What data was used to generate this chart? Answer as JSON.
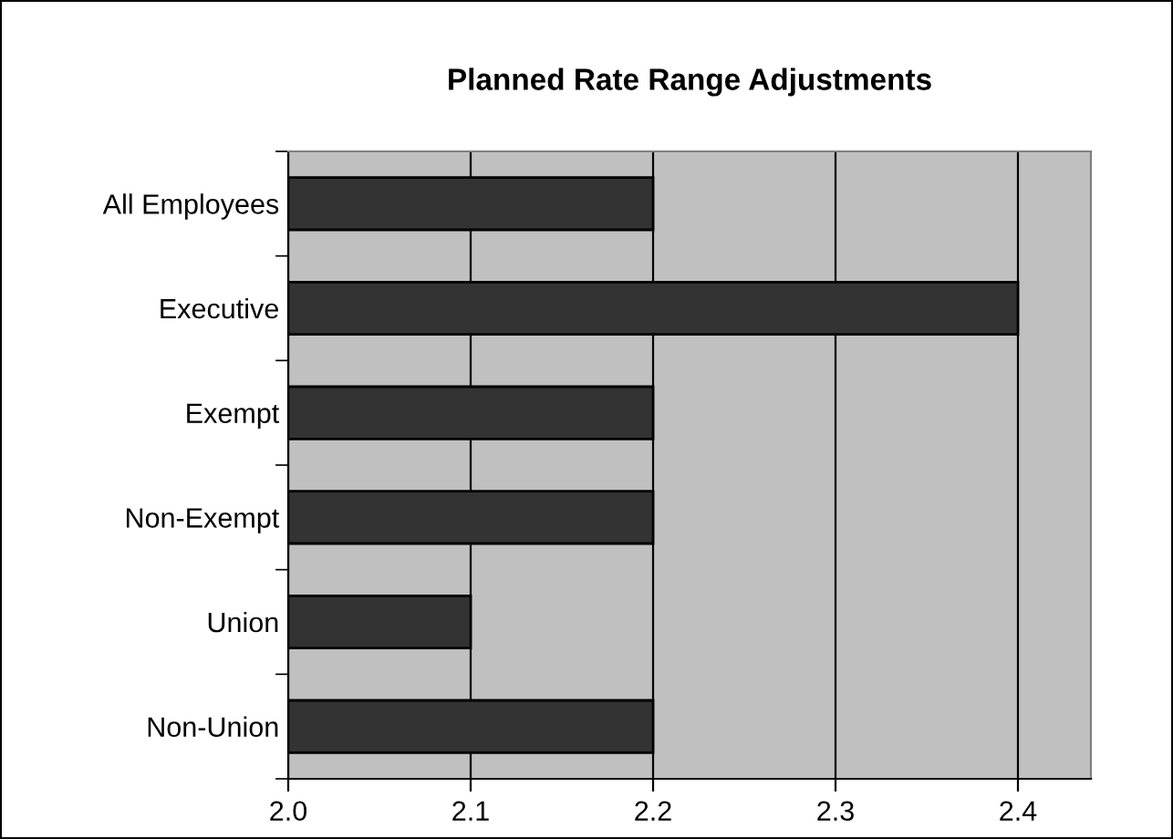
{
  "chart_data": {
    "type": "bar",
    "orientation": "horizontal",
    "title": "Planned Rate Range Adjustments",
    "categories": [
      "All Employees",
      "Executive",
      "Exempt",
      "Non-Exempt",
      "Union",
      "Non-Union"
    ],
    "values": [
      2.2,
      2.4,
      2.2,
      2.2,
      2.1,
      2.2
    ],
    "color": "#333333",
    "xlim": [
      2.0,
      2.44
    ],
    "xticks": [
      {
        "value": 2.0,
        "label": "2.0"
      },
      {
        "value": 2.1,
        "label": "2.1"
      },
      {
        "value": 2.2,
        "label": "2.2"
      },
      {
        "value": 2.3,
        "label": "2.3"
      },
      {
        "value": 2.4,
        "label": "2.4"
      }
    ],
    "grid": "x",
    "legend": false
  }
}
